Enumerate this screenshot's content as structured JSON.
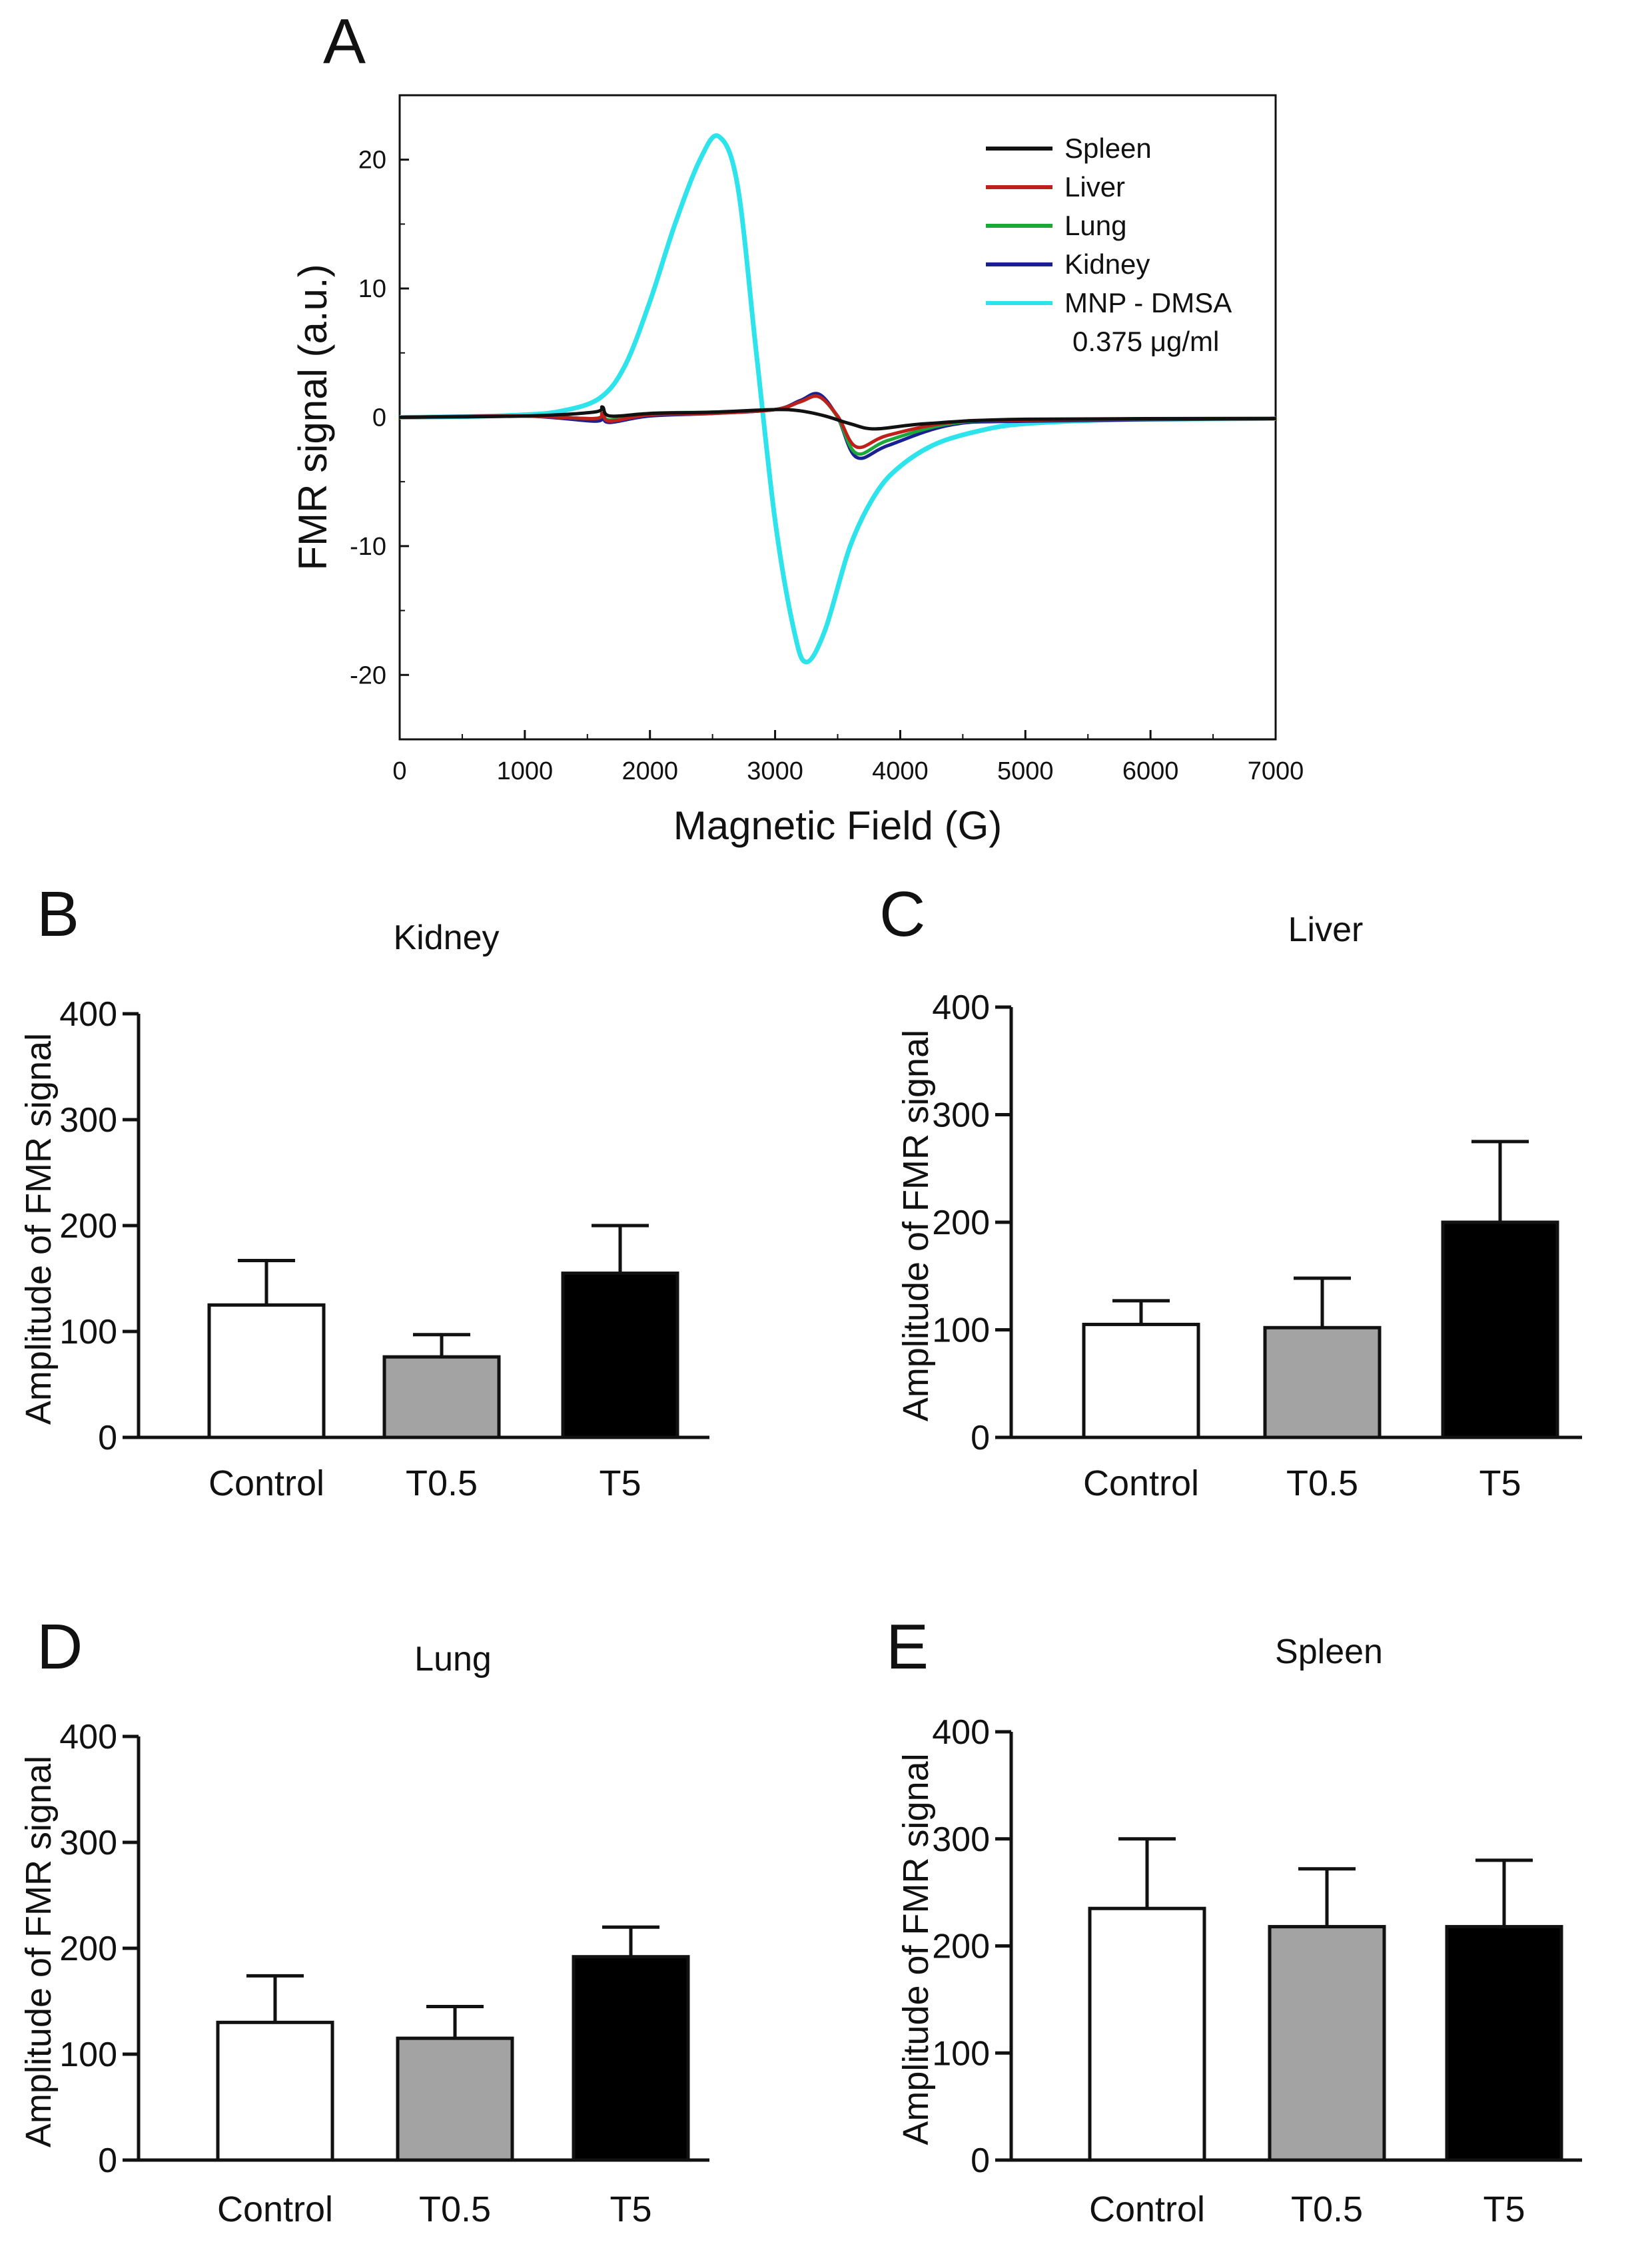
{
  "chart_data": [
    {
      "panel": "A",
      "type": "line",
      "title": "",
      "xlabel": "Magnetic Field (G)",
      "ylabel": "FMR signal (a.u.)",
      "xlim": [
        0,
        7000
      ],
      "ylim": [
        -25,
        25
      ],
      "xticks": [
        0,
        1000,
        2000,
        3000,
        4000,
        5000,
        6000,
        7000
      ],
      "yticks": [
        20,
        10,
        0,
        -10,
        -20
      ],
      "legend_position": "top-right",
      "series": [
        {
          "name": "Spleen",
          "color": "#111111",
          "x": [
            0,
            1000,
            1550,
            1620,
            1680,
            2000,
            2500,
            3000,
            3200,
            3400,
            3600,
            3800,
            4200,
            5000,
            7000
          ],
          "y": [
            0,
            0.1,
            0.4,
            0.8,
            0.1,
            0.3,
            0.4,
            0.6,
            0.5,
            0.1,
            -0.5,
            -0.9,
            -0.5,
            -0.15,
            -0.1
          ]
        },
        {
          "name": "Liver",
          "color": "#c0201c",
          "x": [
            0,
            1000,
            1550,
            1620,
            1680,
            2000,
            2500,
            3000,
            3200,
            3350,
            3500,
            3650,
            3900,
            4400,
            5000,
            7000
          ],
          "y": [
            0,
            0.1,
            -0.1,
            0.3,
            -0.3,
            0.2,
            0.3,
            0.6,
            1.2,
            1.6,
            0.1,
            -2.3,
            -1.4,
            -0.4,
            -0.2,
            -0.1
          ]
        },
        {
          "name": "Lung",
          "color": "#1aa83a",
          "x": [
            0,
            1000,
            1550,
            1620,
            1680,
            2000,
            2500,
            3000,
            3200,
            3350,
            3500,
            3650,
            3900,
            4400,
            5000,
            7000
          ],
          "y": [
            0,
            0.1,
            -0.1,
            0.3,
            -0.2,
            0.3,
            0.4,
            0.6,
            1.2,
            1.6,
            0.0,
            -2.8,
            -1.8,
            -0.5,
            -0.2,
            -0.1
          ]
        },
        {
          "name": "Kidney",
          "color": "#1b1f94",
          "x": [
            0,
            1000,
            1550,
            1620,
            1680,
            2000,
            2500,
            3000,
            3200,
            3350,
            3500,
            3650,
            3900,
            4400,
            5000,
            7000
          ],
          "y": [
            0,
            0.1,
            -0.3,
            0.0,
            -0.4,
            0.1,
            0.3,
            0.6,
            1.3,
            1.8,
            0.0,
            -3.1,
            -2.2,
            -0.6,
            -0.3,
            -0.1
          ]
        },
        {
          "name": "MNP - DMSA",
          "note": "0.375 μg/ml",
          "color": "#2ee4ec",
          "x": [
            0,
            500,
            1000,
            1300,
            1600,
            1800,
            2000,
            2200,
            2400,
            2550,
            2700,
            2850,
            3000,
            3150,
            3250,
            3400,
            3600,
            3800,
            4000,
            4300,
            4700,
            5000,
            5500,
            6000,
            7000
          ],
          "y": [
            0,
            0.05,
            0.2,
            0.5,
            1.5,
            4,
            9,
            15,
            20,
            21.8,
            18,
            5,
            -8,
            -16.5,
            -19,
            -16.5,
            -10,
            -6,
            -3.8,
            -2,
            -0.9,
            -0.5,
            -0.25,
            -0.15,
            -0.1
          ]
        }
      ]
    },
    {
      "panel": "B",
      "type": "bar",
      "title": "Kidney",
      "categories": [
        "Control",
        "T0.5",
        "T5"
      ],
      "values": [
        125,
        76,
        155
      ],
      "errors": [
        42,
        21,
        45
      ],
      "colors": [
        "#ffffff",
        "#a3a3a3",
        "#000000"
      ],
      "ylabel": "Amplitude of FMR signal",
      "xlabel": "",
      "ylim": [
        0,
        400
      ],
      "yticks": [
        0,
        100,
        200,
        300,
        400
      ]
    },
    {
      "panel": "C",
      "type": "bar",
      "title": "Liver",
      "categories": [
        "Control",
        "T0.5",
        "T5"
      ],
      "values": [
        105,
        102,
        200
      ],
      "errors": [
        22,
        46,
        75
      ],
      "colors": [
        "#ffffff",
        "#a3a3a3",
        "#000000"
      ],
      "ylabel": "Amplitude of FMR signal",
      "xlabel": "",
      "ylim": [
        0,
        400
      ],
      "yticks": [
        0,
        100,
        200,
        300,
        400
      ]
    },
    {
      "panel": "D",
      "type": "bar",
      "title": "Lung",
      "categories": [
        "Control",
        "T0.5",
        "T5"
      ],
      "values": [
        130,
        115,
        192
      ],
      "errors": [
        44,
        30,
        28
      ],
      "colors": [
        "#ffffff",
        "#a3a3a3",
        "#000000"
      ],
      "ylabel": "Amplitude of FMR signal",
      "xlabel": "",
      "ylim": [
        0,
        400
      ],
      "yticks": [
        0,
        100,
        200,
        300,
        400
      ]
    },
    {
      "panel": "E",
      "type": "bar",
      "title": "Spleen",
      "categories": [
        "Control",
        "T0.5",
        "T5"
      ],
      "values": [
        235,
        218,
        218
      ],
      "errors": [
        65,
        54,
        62
      ],
      "colors": [
        "#ffffff",
        "#a3a3a3",
        "#000000"
      ],
      "ylabel": "Amplitude of FMR signal",
      "xlabel": "",
      "ylim": [
        0,
        400
      ],
      "yticks": [
        0,
        100,
        200,
        300,
        400
      ]
    }
  ]
}
